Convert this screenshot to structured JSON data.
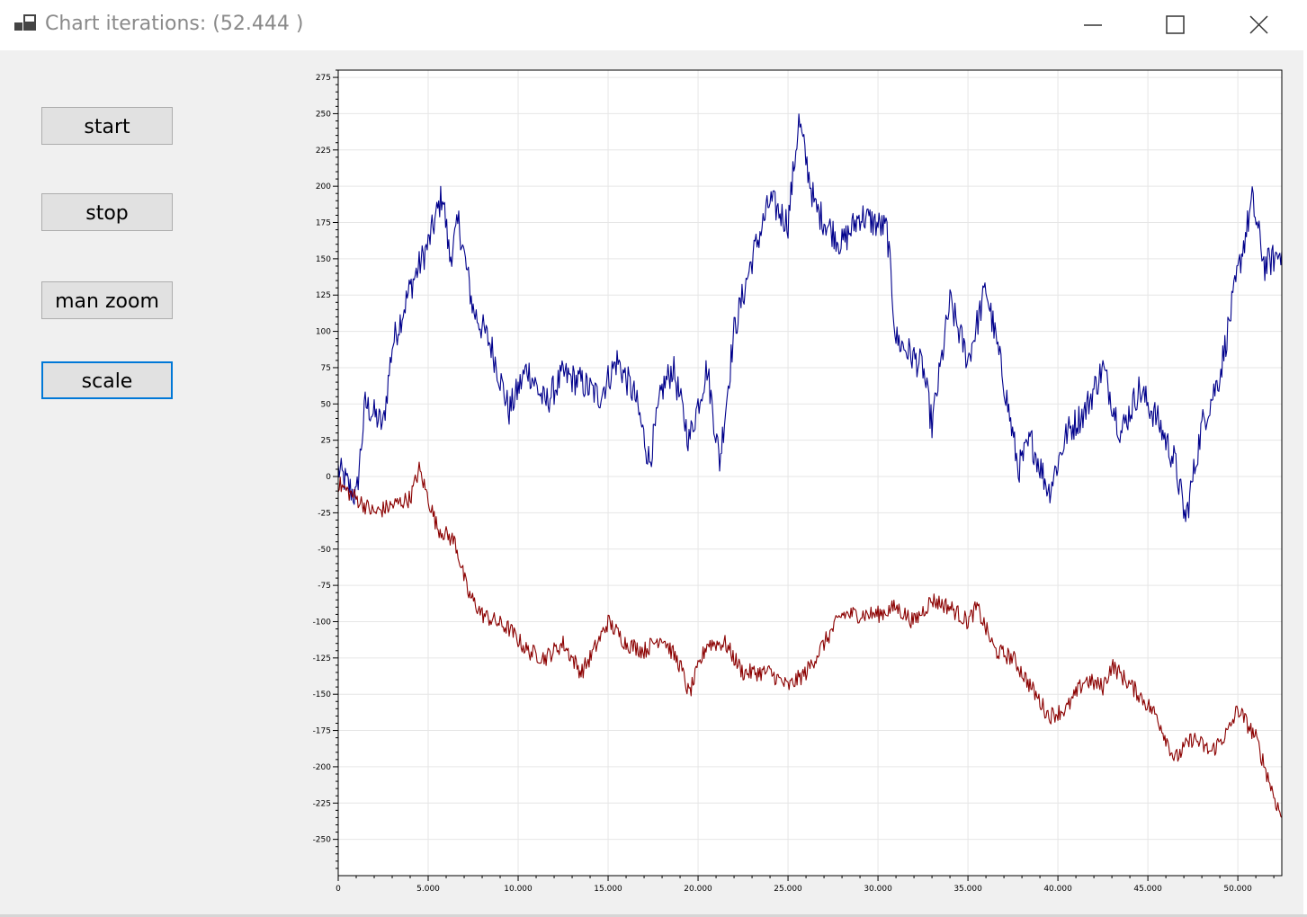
{
  "window": {
    "title": "Chart iterations: (52.444 )",
    "minimize_glyph": "minimize-icon",
    "maximize_glyph": "maximize-icon",
    "close_glyph": "close-icon"
  },
  "buttons": {
    "start": "start",
    "stop": "stop",
    "man_zoom": "man zoom",
    "scale": "scale"
  },
  "colors": {
    "series_blue": "#00008b",
    "series_red": "#8b0000",
    "focus_border": "#0078d7"
  },
  "chart_data": {
    "type": "line",
    "title": "",
    "xlabel": "",
    "ylabel": "",
    "xlim": [
      0,
      52444
    ],
    "ylim": [
      -275,
      280
    ],
    "grid": true,
    "legend": "none",
    "x_ticks": [
      0,
      5000,
      10000,
      15000,
      20000,
      25000,
      30000,
      35000,
      40000,
      45000,
      50000
    ],
    "x_tick_labels": [
      "0",
      "5.000",
      "10.000",
      "15.000",
      "20.000",
      "25.000",
      "30.000",
      "35.000",
      "40.000",
      "45.000",
      "50.000"
    ],
    "y_ticks": [
      275,
      250,
      225,
      200,
      175,
      150,
      125,
      100,
      75,
      50,
      25,
      0,
      -25,
      -50,
      -75,
      -100,
      -125,
      -150,
      -175,
      -200,
      -225,
      -250
    ],
    "series": [
      {
        "color": "#00008b",
        "x": [
          0,
          1000,
          1500,
          2500,
          3000,
          4000,
          5000,
          5800,
          6200,
          6700,
          7500,
          8500,
          9500,
          10500,
          11500,
          12500,
          13500,
          14500,
          15500,
          16500,
          17300,
          18000,
          18600,
          19500,
          20500,
          21200,
          22000,
          23000,
          24000,
          25000,
          25600,
          26500,
          28000,
          29000,
          30500,
          31000,
          32500,
          33000,
          34000,
          35000,
          36000,
          37000,
          37800,
          38500,
          39500,
          40500,
          41500,
          42500,
          43500,
          44500,
          45500,
          46500,
          47100,
          48000,
          49000,
          50000,
          50800,
          51500,
          52444
        ],
        "y": [
          5,
          -15,
          50,
          35,
          90,
          130,
          160,
          195,
          150,
          175,
          115,
          90,
          45,
          75,
          50,
          70,
          65,
          55,
          80,
          55,
          10,
          60,
          75,
          25,
          75,
          10,
          100,
          150,
          190,
          175,
          245,
          185,
          160,
          180,
          170,
          95,
          75,
          35,
          120,
          80,
          130,
          65,
          5,
          25,
          -10,
          30,
          45,
          75,
          30,
          60,
          40,
          10,
          -30,
          35,
          70,
          140,
          190,
          145,
          155
        ]
      },
      {
        "color": "#8b0000",
        "x": [
          0,
          1000,
          2000,
          3000,
          4000,
          4500,
          5500,
          6500,
          7200,
          8000,
          9500,
          10500,
          11500,
          12500,
          13500,
          14000,
          15000,
          16000,
          17000,
          18000,
          19000,
          19500,
          20500,
          21500,
          22500,
          24000,
          25000,
          26000,
          27000,
          28000,
          29000,
          30000,
          31000,
          32000,
          33000,
          34000,
          35000,
          35500,
          36500,
          37500,
          38500,
          39500,
          40500,
          41500,
          42500,
          43000,
          44500,
          45500,
          46500,
          47500,
          48500,
          49500,
          50000,
          51000,
          52000,
          52444
        ],
        "y": [
          -5,
          -15,
          -25,
          -20,
          -15,
          5,
          -35,
          -45,
          -80,
          -95,
          -105,
          -120,
          -125,
          -115,
          -135,
          -125,
          -100,
          -115,
          -120,
          -110,
          -130,
          -150,
          -115,
          -115,
          -135,
          -135,
          -145,
          -135,
          -115,
          -95,
          -95,
          -95,
          -90,
          -100,
          -85,
          -90,
          -100,
          -90,
          -120,
          -125,
          -145,
          -165,
          -160,
          -140,
          -145,
          -130,
          -150,
          -165,
          -195,
          -180,
          -190,
          -175,
          -160,
          -180,
          -220,
          -235
        ]
      }
    ]
  }
}
